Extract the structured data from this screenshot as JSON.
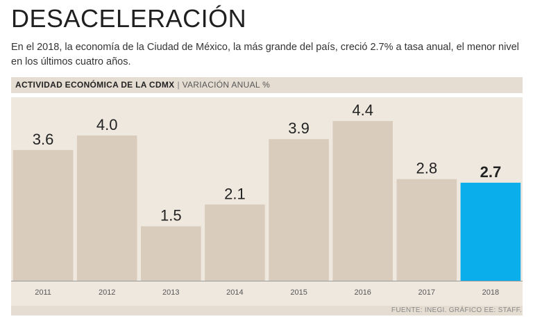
{
  "header": {
    "title": "DESACELERACIÓN",
    "subtitle": "En el 2018, la economía de la Ciudad de México, la más grande del país, creció 2.7% a tasa anual, el menor nivel en los últimos cuatro años."
  },
  "band": {
    "label_bold": "ACTIVIDAD ECONÓMICA DE LA CDMX",
    "separator": "|",
    "label_light": "VARIACIÓN ANUAL %"
  },
  "footer": {
    "source": "FUENTE: INEGI. GRÁFICO EE: STAFF."
  },
  "colors": {
    "bar": "#d9ccbc",
    "highlight": "#0aaeea",
    "background": "#efe8df",
    "axis": "#999999"
  },
  "chart_data": {
    "type": "bar",
    "title": "ACTIVIDAD ECONÓMICA DE LA CDMX",
    "ylabel": "VARIACIÓN ANUAL %",
    "xlabel": "",
    "categories": [
      "2011",
      "2012",
      "2013",
      "2014",
      "2015",
      "2016",
      "2017",
      "2018"
    ],
    "values": [
      3.6,
      4.0,
      1.5,
      2.1,
      3.9,
      4.4,
      2.8,
      2.7
    ],
    "value_labels": [
      "3.6",
      "4.0",
      "1.5",
      "2.1",
      "3.9",
      "4.4",
      "2.8",
      "2.7"
    ],
    "highlight_index": 7,
    "ylim": [
      0,
      4.9
    ],
    "grid": false,
    "legend": "none"
  }
}
